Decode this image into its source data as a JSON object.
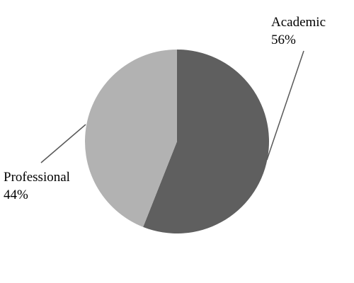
{
  "chart_data": {
    "type": "pie",
    "slices": [
      {
        "label": "Academic",
        "value": 56,
        "value_label": "56%",
        "color": "#5f5f5f"
      },
      {
        "label": "Professional",
        "value": 44,
        "value_label": "44%",
        "color": "#b2b2b2"
      }
    ],
    "start": "top",
    "direction": "clockwise",
    "leader_line_color": "#595959",
    "legend": "none"
  }
}
